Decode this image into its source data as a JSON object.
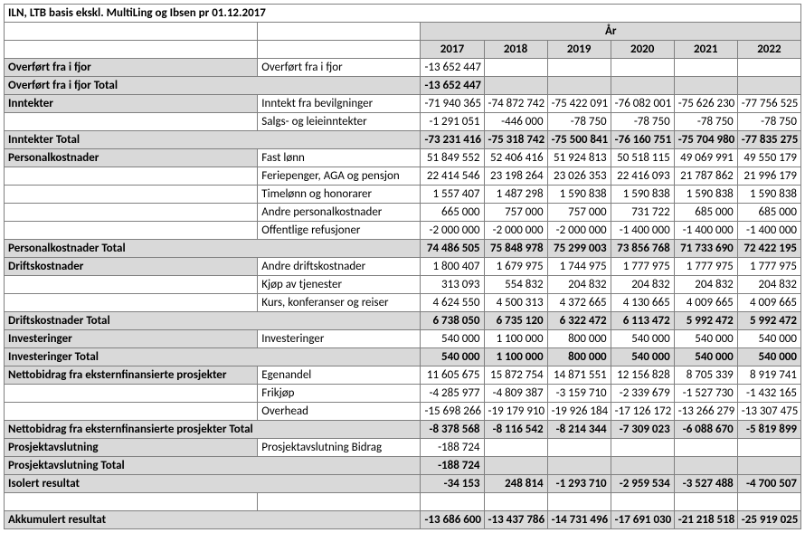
{
  "title": "ILN, LTB basis ekskl. MultiLing og Ibsen pr 01.12.2017",
  "year_label": "År",
  "years": [
    "2017",
    "2018",
    "2019",
    "2020",
    "2021",
    "2022"
  ],
  "overfort": {
    "section": "Overført fra i fjor",
    "row_label": "Overført fra i fjor",
    "values": [
      "-13 652 447",
      "",
      "",
      "",
      "",
      ""
    ],
    "total_label": "Overført fra i fjor Total",
    "total": [
      "-13 652 447",
      "",
      "",
      "",
      "",
      ""
    ]
  },
  "inntekter": {
    "section": "Inntekter",
    "rows": [
      {
        "label": "Inntekt fra bevilgninger",
        "v": [
          "-71 940 365",
          "-74 872 742",
          "-75 422 091",
          "-76 082 001",
          "-75 626 230",
          "-77 756 525"
        ]
      },
      {
        "label": "Salgs- og leieinntekter",
        "v": [
          "-1 291 051",
          "-446 000",
          "-78 750",
          "-78 750",
          "-78 750",
          "-78 750"
        ]
      }
    ],
    "total_label": "Inntekter Total",
    "total": [
      "-73 231 416",
      "-75 318 742",
      "-75 500 841",
      "-76 160 751",
      "-75 704 980",
      "-77 835 275"
    ]
  },
  "personal": {
    "section": "Personalkostnader",
    "rows": [
      {
        "label": "Fast lønn",
        "v": [
          "51 849 552",
          "52 406 416",
          "51 924 813",
          "50 518 115",
          "49 069 991",
          "49 550 179"
        ]
      },
      {
        "label": "Feriepenger, AGA og pensjon",
        "v": [
          "22 414 546",
          "23 198 264",
          "23 026 353",
          "22 416 093",
          "21 787 862",
          "21 996 179"
        ]
      },
      {
        "label": "Timelønn og honorarer",
        "v": [
          "1 557 407",
          "1 487 298",
          "1 590 838",
          "1 590 838",
          "1 590 838",
          "1 590 838"
        ]
      },
      {
        "label": "Andre personalkostnader",
        "v": [
          "665 000",
          "757 000",
          "757 000",
          "731 722",
          "685 000",
          "685 000"
        ]
      },
      {
        "label": "Offentlige refusjoner",
        "v": [
          "-2 000 000",
          "-2 000 000",
          "-2 000 000",
          "-1 400 000",
          "-1 400 000",
          "-1 400 000"
        ]
      }
    ],
    "total_label": "Personalkostnader Total",
    "total": [
      "74 486 505",
      "75 848 978",
      "75 299 003",
      "73 856 768",
      "71 733 690",
      "72 422 195"
    ]
  },
  "drift": {
    "section": "Driftskostnader",
    "rows": [
      {
        "label": "Andre driftskostnader",
        "v": [
          "1 800 407",
          "1 679 975",
          "1 744 975",
          "1 777 975",
          "1 777 975",
          "1 777 975"
        ]
      },
      {
        "label": "Kjøp av tjenester",
        "v": [
          "313 093",
          "554 832",
          "204 832",
          "204 832",
          "204 832",
          "204 832"
        ]
      },
      {
        "label": "Kurs, konferanser og reiser",
        "v": [
          "4 624 550",
          "4 500 313",
          "4 372 665",
          "4 130 665",
          "4 009 665",
          "4 009 665"
        ]
      }
    ],
    "total_label": "Driftskostnader Total",
    "total": [
      "6 738 050",
      "6 735 120",
      "6 322 472",
      "6 113 472",
      "5 992 472",
      "5 992 472"
    ]
  },
  "invest": {
    "section": "Investeringer",
    "row_label": "Investeringer",
    "values": [
      "540 000",
      "1 100 000",
      "800 000",
      "540 000",
      "540 000",
      "540 000"
    ],
    "total_label": "Investeringer Total",
    "total": [
      "540 000",
      "1 100 000",
      "800 000",
      "540 000",
      "540 000",
      "540 000"
    ]
  },
  "netto": {
    "section": "Nettobidrag fra eksternfinansierte prosjekter",
    "rows": [
      {
        "label": "Egenandel",
        "v": [
          "11 605 675",
          "15 872 754",
          "14 871 551",
          "12 156 828",
          "8 705 339",
          "8 919 741"
        ]
      },
      {
        "label": "Frikjøp",
        "v": [
          "-4 285 977",
          "-4 809 387",
          "-3 159 710",
          "-2 339 679",
          "-1 527 730",
          "-1 432 165"
        ]
      },
      {
        "label": "Overhead",
        "v": [
          "-15 698 266",
          "-19 179 910",
          "-19 926 184",
          "-17 126 172",
          "-13 266 279",
          "-13 307 475"
        ]
      }
    ],
    "total_label": "Nettobidrag fra eksternfinansierte prosjekter Total",
    "total": [
      "-8 378 568",
      "-8 116 542",
      "-8 214 344",
      "-7 309 023",
      "-6 088 670",
      "-5 819 899"
    ]
  },
  "prosjekt": {
    "section": "Prosjektavslutning",
    "row_label": "Prosjektavslutning Bidrag",
    "values": [
      "-188 724",
      "",
      "",
      "",
      "",
      ""
    ],
    "total_label": "Prosjektavslutning Total",
    "total": [
      "-188 724",
      "",
      "",
      "",
      "",
      ""
    ]
  },
  "isolert": {
    "label": "Isolert resultat",
    "total": [
      "-34 153",
      "248 814",
      "-1 293 710",
      "-2 959 534",
      "-3 527 488",
      "-4 700 507"
    ]
  },
  "akkum": {
    "label": "Akkumulert resultat",
    "total": [
      "-13 686 600",
      "-13 437 786",
      "-14 731 496",
      "-17 691 030",
      "-21 218 518",
      "-25 919 025"
    ]
  }
}
